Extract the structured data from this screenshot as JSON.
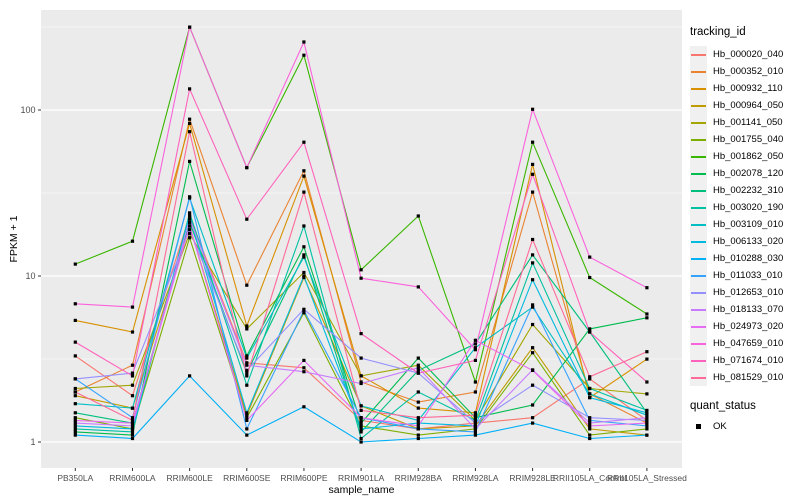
{
  "chart_data": {
    "type": "line",
    "title": "",
    "xlabel": "sample_name",
    "ylabel": "FPKM + 1",
    "y_scale": "log10",
    "y_ticks": [
      1,
      10,
      100
    ],
    "y_minor_ticks": [
      3.162,
      31.62,
      316.2
    ],
    "ylim": [
      0.7,
      400
    ],
    "grid": true,
    "panel_bg": "#EBEBEB",
    "grid_color": "#FFFFFF",
    "tick_label_color": "#4D4D4D",
    "marker": "black-square",
    "marker_color": "#000000",
    "legend_position": "right",
    "categories": [
      "PB350LA",
      "RRIM600LA",
      "RRIM600LE",
      "RRIM600SE",
      "RRIM600PE",
      "RRIM901LA",
      "RRIM928BA",
      "RRIM928LA",
      "RRIM928LE",
      "RRII105LA_Control",
      "RRII105LA_Stressed"
    ],
    "legend": {
      "title": "tracking_id"
    },
    "quant_status": {
      "title": "quant_status",
      "items": [
        {
          "label": "OK",
          "marker": "black-square"
        }
      ]
    },
    "series": [
      {
        "name": "Hb_000020_040",
        "color": "#F8766D",
        "values": [
          3.3,
          1.9,
          23,
          3.0,
          2.8,
          1.35,
          1.2,
          1.3,
          1.4,
          2.4,
          1.35
        ]
      },
      {
        "name": "Hb_000352_010",
        "color": "#EA8331",
        "values": [
          2.0,
          2.9,
          88,
          8.8,
          43,
          2.3,
          1.74,
          2.0,
          32,
          1.95,
          1.3
        ]
      },
      {
        "name": "Hb_000932_110",
        "color": "#D89000",
        "values": [
          5.4,
          4.6,
          83,
          5.0,
          40,
          2.5,
          1.6,
          1.5,
          47,
          1.85,
          3.16
        ]
      },
      {
        "name": "Hb_000964_050",
        "color": "#C09B00",
        "values": [
          1.9,
          1.6,
          20,
          1.45,
          9.8,
          1.65,
          1.2,
          1.25,
          3.7,
          1.2,
          1.1
        ]
      },
      {
        "name": "Hb_001141_050",
        "color": "#A3A500",
        "values": [
          2.1,
          2.2,
          18,
          4.8,
          10.5,
          2.5,
          2.9,
          1.35,
          5.1,
          2.1,
          1.95
        ]
      },
      {
        "name": "Hb_001755_040",
        "color": "#7CAE00",
        "values": [
          1.4,
          1.2,
          17,
          1.4,
          6.0,
          1.25,
          1.1,
          1.2,
          3.45,
          1.1,
          1.2
        ]
      },
      {
        "name": "Hb_001862_050",
        "color": "#39B600",
        "values": [
          11.8,
          16.2,
          316,
          45,
          214,
          10.9,
          23,
          2.3,
          64,
          9.8,
          5.9
        ]
      },
      {
        "name": "Hb_002078_120",
        "color": "#00BB4E",
        "values": [
          1.15,
          1.1,
          49,
          3.3,
          15,
          1.3,
          3.2,
          1.4,
          1.67,
          4.8,
          5.6
        ]
      },
      {
        "name": "Hb_002232_310",
        "color": "#00BF7D",
        "values": [
          1.5,
          1.3,
          21,
          2.6,
          13.4,
          1.15,
          2.7,
          3.9,
          13.4,
          4.6,
          1.5
        ]
      },
      {
        "name": "Hb_003020_190",
        "color": "#00C1A3",
        "values": [
          1.2,
          1.15,
          24,
          2.2,
          20,
          1.05,
          2.0,
          1.35,
          12,
          2.1,
          1.55
        ]
      },
      {
        "name": "Hb_003109_010",
        "color": "#00BFC4",
        "values": [
          1.7,
          1.6,
          29.5,
          3.2,
          13,
          1.65,
          1.35,
          3.7,
          6.5,
          1.95,
          1.45
        ]
      },
      {
        "name": "Hb_006133_020",
        "color": "#00BAE0",
        "values": [
          1.25,
          1.2,
          23,
          1.5,
          10,
          1.2,
          1.3,
          1.25,
          9.5,
          1.85,
          1.5
        ]
      },
      {
        "name": "Hb_010288_030",
        "color": "#00B0F6",
        "values": [
          1.1,
          1.05,
          2.5,
          1.1,
          1.63,
          1.0,
          1.05,
          1.1,
          1.3,
          1.05,
          1.1
        ]
      },
      {
        "name": "Hb_011033_010",
        "color": "#35A2FF",
        "values": [
          2.4,
          1.4,
          30,
          1.2,
          6.2,
          1.4,
          1.2,
          1.15,
          6.7,
          1.35,
          1.25
        ]
      },
      {
        "name": "Hb_012653_010",
        "color": "#9590FF",
        "values": [
          2.4,
          2.6,
          19,
          2.7,
          6.3,
          3.2,
          2.6,
          1.3,
          2.2,
          1.4,
          1.35
        ]
      },
      {
        "name": "Hb_018133_070",
        "color": "#C77CFF",
        "values": [
          1.3,
          1.25,
          22,
          2.9,
          2.65,
          2.25,
          2.8,
          1.2,
          2.72,
          1.3,
          1.4
        ]
      },
      {
        "name": "Hb_024973_020",
        "color": "#E76BF3",
        "values": [
          1.35,
          1.3,
          20,
          1.35,
          3.1,
          1.4,
          1.25,
          4.1,
          2.7,
          1.25,
          1.3
        ]
      },
      {
        "name": "Hb_047659_010",
        "color": "#FA62DB",
        "values": [
          6.8,
          6.5,
          316,
          45,
          257,
          9.7,
          8.6,
          3.6,
          101,
          13,
          8.5
        ]
      },
      {
        "name": "Hb_071674_010",
        "color": "#FF62BC",
        "values": [
          4.0,
          2.5,
          134,
          22,
          64,
          4.5,
          2.6,
          3.1,
          41,
          4.6,
          2.3
        ]
      },
      {
        "name": "Hb_081529_010",
        "color": "#FF6A98",
        "values": [
          2.0,
          1.35,
          74,
          2.5,
          32,
          1.55,
          1.4,
          1.45,
          16.6,
          2.47,
          3.5
        ]
      }
    ]
  }
}
